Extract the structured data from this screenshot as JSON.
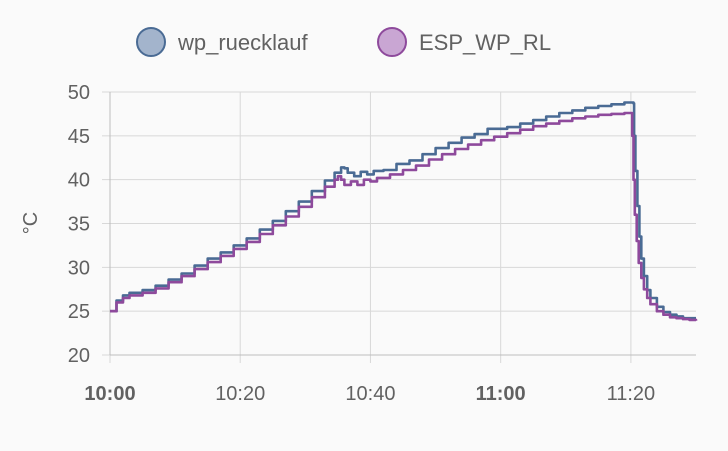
{
  "chart_data": {
    "type": "line",
    "ylabel": "°C",
    "xlabel": "",
    "ylim": [
      20,
      50
    ],
    "xlim_minutes": [
      0,
      90
    ],
    "y_ticks": [
      20,
      25,
      30,
      35,
      40,
      45,
      50
    ],
    "x_ticks": [
      {
        "minute": 0,
        "label": "10:00",
        "bold": true
      },
      {
        "minute": 20,
        "label": "10:20",
        "bold": false
      },
      {
        "minute": 40,
        "label": "10:40",
        "bold": false
      },
      {
        "minute": 60,
        "label": "11:00",
        "bold": true
      },
      {
        "minute": 80,
        "label": "11:20",
        "bold": false
      }
    ],
    "grid": true,
    "legend": "top-center",
    "x_unit": "minutes after 10:00",
    "series": [
      {
        "name": "wp_ruecklauf",
        "color": "#4a6b94",
        "fill": "#a3b4cc",
        "points": [
          [
            0,
            25.0
          ],
          [
            1,
            26.2
          ],
          [
            2,
            26.8
          ],
          [
            3,
            27.1
          ],
          [
            5,
            27.4
          ],
          [
            7,
            27.9
          ],
          [
            9,
            28.6
          ],
          [
            11,
            29.3
          ],
          [
            13,
            30.2
          ],
          [
            15,
            31.0
          ],
          [
            17,
            31.7
          ],
          [
            19,
            32.5
          ],
          [
            21,
            33.3
          ],
          [
            23,
            34.3
          ],
          [
            25,
            35.3
          ],
          [
            27,
            36.4
          ],
          [
            29,
            37.5
          ],
          [
            31,
            38.7
          ],
          [
            33,
            39.9
          ],
          [
            34.5,
            40.8
          ],
          [
            35.5,
            41.4
          ],
          [
            36,
            41.3
          ],
          [
            36.5,
            40.8
          ],
          [
            37.5,
            40.4
          ],
          [
            38.5,
            40.9
          ],
          [
            39.5,
            40.6
          ],
          [
            40.5,
            41.0
          ],
          [
            42,
            41.1
          ],
          [
            44,
            41.8
          ],
          [
            46,
            42.2
          ],
          [
            48,
            42.9
          ],
          [
            50,
            43.6
          ],
          [
            52,
            44.2
          ],
          [
            54,
            44.8
          ],
          [
            56,
            45.2
          ],
          [
            58,
            45.8
          ],
          [
            59,
            45.8
          ],
          [
            61,
            46.0
          ],
          [
            63,
            46.4
          ],
          [
            65,
            46.8
          ],
          [
            67,
            47.2
          ],
          [
            69,
            47.6
          ],
          [
            71,
            47.9
          ],
          [
            73,
            48.2
          ],
          [
            75,
            48.4
          ],
          [
            77,
            48.6
          ],
          [
            79,
            48.8
          ],
          [
            80,
            48.8
          ],
          [
            80.4,
            48.7
          ],
          [
            80.5,
            45.0
          ],
          [
            80.7,
            41.0
          ],
          [
            81,
            37.0
          ],
          [
            81.3,
            33.5
          ],
          [
            81.6,
            31.0
          ],
          [
            82,
            29.0
          ],
          [
            82.5,
            27.4
          ],
          [
            83,
            26.5
          ],
          [
            84,
            25.5
          ],
          [
            85,
            24.9
          ],
          [
            86,
            24.6
          ],
          [
            87,
            24.4
          ],
          [
            88,
            24.2
          ],
          [
            89,
            24.2
          ],
          [
            90,
            24.2
          ]
        ]
      },
      {
        "name": "ESP_WP_RL",
        "color": "#8e4a9c",
        "fill": "#c9a6d3",
        "points": [
          [
            0,
            25.0
          ],
          [
            1,
            26.0
          ],
          [
            2,
            26.5
          ],
          [
            3,
            26.8
          ],
          [
            5,
            27.1
          ],
          [
            7,
            27.6
          ],
          [
            9,
            28.3
          ],
          [
            11,
            29.0
          ],
          [
            13,
            29.8
          ],
          [
            15,
            30.6
          ],
          [
            17,
            31.3
          ],
          [
            19,
            32.1
          ],
          [
            21,
            32.9
          ],
          [
            23,
            33.8
          ],
          [
            25,
            34.8
          ],
          [
            27,
            35.8
          ],
          [
            29,
            36.9
          ],
          [
            31,
            38.0
          ],
          [
            33,
            39.2
          ],
          [
            34.5,
            40.0
          ],
          [
            35,
            40.4
          ],
          [
            35.5,
            40.0
          ],
          [
            36,
            39.4
          ],
          [
            37,
            39.8
          ],
          [
            38,
            39.4
          ],
          [
            39,
            40.0
          ],
          [
            40,
            39.8
          ],
          [
            41,
            40.2
          ],
          [
            43,
            40.6
          ],
          [
            45,
            41.1
          ],
          [
            47,
            41.6
          ],
          [
            49,
            42.3
          ],
          [
            51,
            42.9
          ],
          [
            53,
            43.5
          ],
          [
            55,
            44.0
          ],
          [
            57,
            44.5
          ],
          [
            59,
            44.9
          ],
          [
            61,
            45.3
          ],
          [
            63,
            45.7
          ],
          [
            65,
            46.1
          ],
          [
            67,
            46.4
          ],
          [
            69,
            46.7
          ],
          [
            71,
            47.0
          ],
          [
            73,
            47.2
          ],
          [
            75,
            47.4
          ],
          [
            77,
            47.5
          ],
          [
            79,
            47.6
          ],
          [
            80,
            47.6
          ],
          [
            80.2,
            45.0
          ],
          [
            80.4,
            40.0
          ],
          [
            80.6,
            36.0
          ],
          [
            80.9,
            33.0
          ],
          [
            81.2,
            30.5
          ],
          [
            81.6,
            28.8
          ],
          [
            82,
            27.5
          ],
          [
            82.5,
            26.5
          ],
          [
            83,
            25.8
          ],
          [
            84,
            25.0
          ],
          [
            85,
            24.6
          ],
          [
            86,
            24.3
          ],
          [
            87,
            24.2
          ],
          [
            88,
            24.1
          ],
          [
            89,
            24.0
          ],
          [
            90,
            23.9
          ]
        ]
      }
    ]
  }
}
